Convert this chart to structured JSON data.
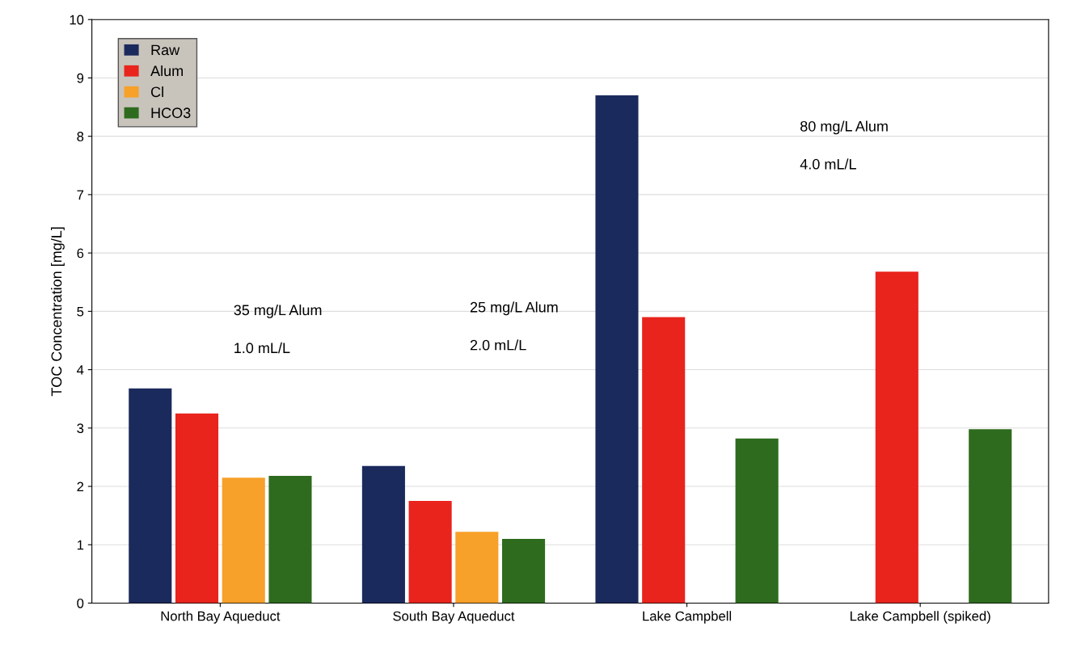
{
  "chart_data": {
    "type": "bar",
    "ylabel": "TOC Concentration [mg/L]",
    "categories": [
      "North Bay Aqueduct",
      "South Bay Aqueduct",
      "Lake Campbell",
      "Lake Campbell (spiked)"
    ],
    "series": [
      {
        "name": "Raw",
        "color": "#1b2a5c",
        "values": [
          3.68,
          2.35,
          8.7,
          null
        ]
      },
      {
        "name": "Alum",
        "color": "#e8241c",
        "values": [
          3.25,
          1.75,
          4.9,
          5.68
        ]
      },
      {
        "name": "Cl",
        "color": "#f7a02a",
        "values": [
          2.15,
          1.22,
          null,
          null
        ]
      },
      {
        "name": "HCO3",
        "color": "#2e6b1e",
        "values": [
          2.18,
          1.1,
          2.82,
          2.98
        ]
      }
    ],
    "ylim": [
      0,
      10
    ],
    "yticks": [
      0,
      1,
      2,
      3,
      4,
      5,
      6,
      7,
      8,
      9,
      10
    ],
    "grid": "y",
    "legend": "top left",
    "annotations": [
      "35 mg/L Alum",
      "1.0 mL/L",
      "25 mg/L Alum",
      "2.0 mL/L",
      "80 mg/L Alum",
      "4.0 mL/L"
    ]
  }
}
